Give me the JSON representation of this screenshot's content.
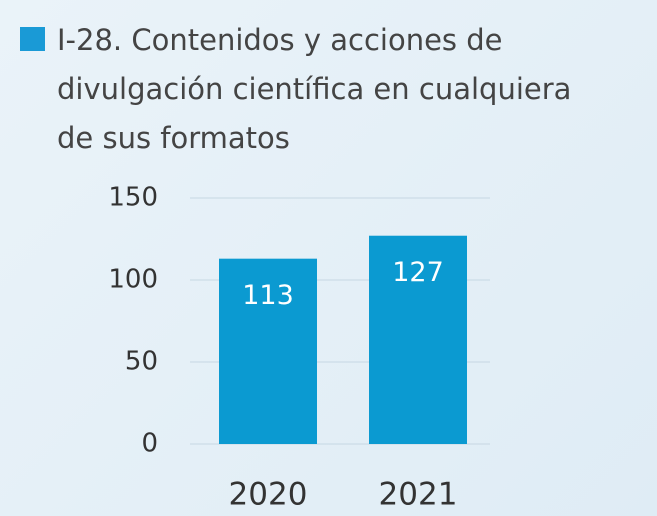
{
  "chart_data": {
    "type": "bar",
    "title": [
      "I-28. Contenidos y acciones de",
      "divulgación científica en cualquiera",
      "de sus formatos"
    ],
    "categories": [
      "2020",
      "2021"
    ],
    "values": [
      113,
      127
    ],
    "color": "#0b9ad1",
    "ylim": [
      0,
      150
    ],
    "yticks": [
      0,
      50,
      100,
      150
    ],
    "grid": true
  }
}
